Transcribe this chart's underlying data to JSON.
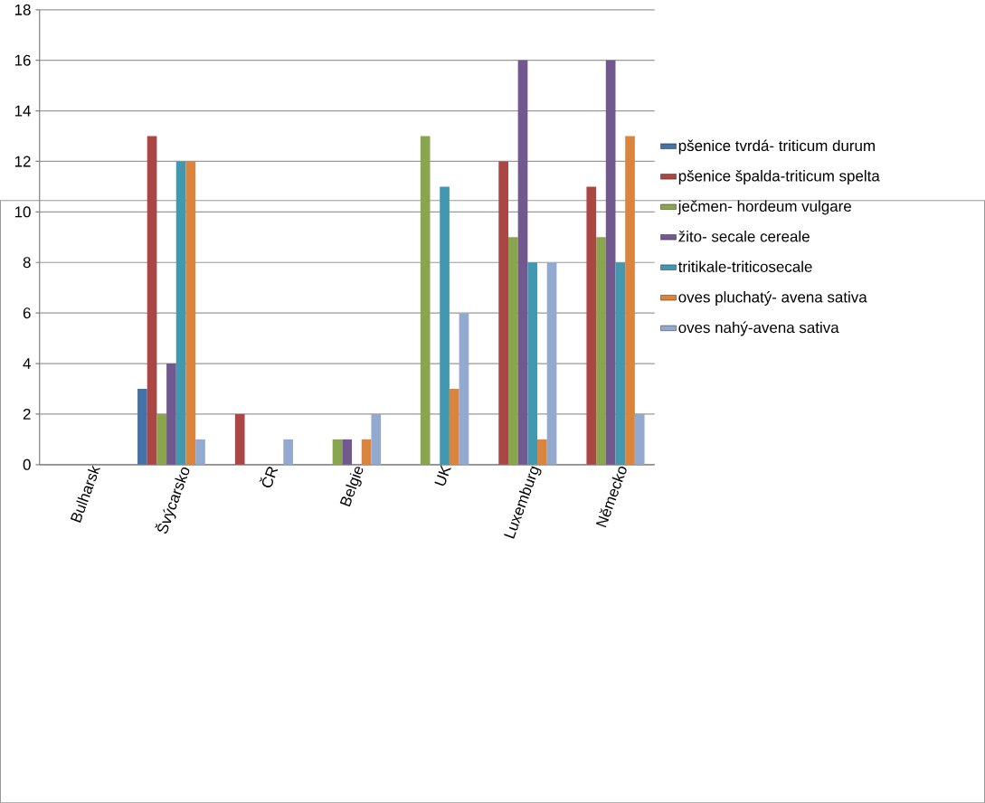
{
  "chart_data": {
    "type": "bar",
    "categories": [
      "Bulharsk",
      "Švýcarsko",
      "ČR",
      "Belgie",
      "UK",
      "Luxemburg",
      "Německo"
    ],
    "series": [
      {
        "name": "pšenice tvrdá- triticum durum",
        "color": "#4572a7",
        "values": [
          0,
          3,
          0,
          0,
          0,
          0,
          0
        ]
      },
      {
        "name": "pšenice špalda-triticum spelta",
        "color": "#aa4643",
        "values": [
          0,
          13,
          2,
          0,
          0,
          12,
          11
        ]
      },
      {
        "name": "ječmen- hordeum vulgare",
        "color": "#89a54e",
        "values": [
          0,
          2,
          0,
          1,
          13,
          9,
          9
        ]
      },
      {
        "name": "žito- secale cereale",
        "color": "#71588f",
        "values": [
          0,
          4,
          0,
          1,
          0,
          16,
          16
        ]
      },
      {
        "name": "tritikale-triticosecale",
        "color": "#4198af",
        "values": [
          0,
          12,
          0,
          0,
          11,
          8,
          8
        ]
      },
      {
        "name": "oves pluchatý- avena sativa",
        "color": "#db843d",
        "values": [
          0,
          12,
          0,
          1,
          3,
          1,
          13
        ]
      },
      {
        "name": "oves nahý-avena sativa",
        "color": "#93a9cf",
        "values": [
          0,
          1,
          1,
          2,
          6,
          8,
          2
        ]
      }
    ],
    "ylim": [
      0,
      18
    ],
    "yticks": [
      0,
      2,
      4,
      6,
      8,
      10,
      12,
      14,
      16,
      18
    ],
    "grid": "y",
    "legend": "right"
  }
}
